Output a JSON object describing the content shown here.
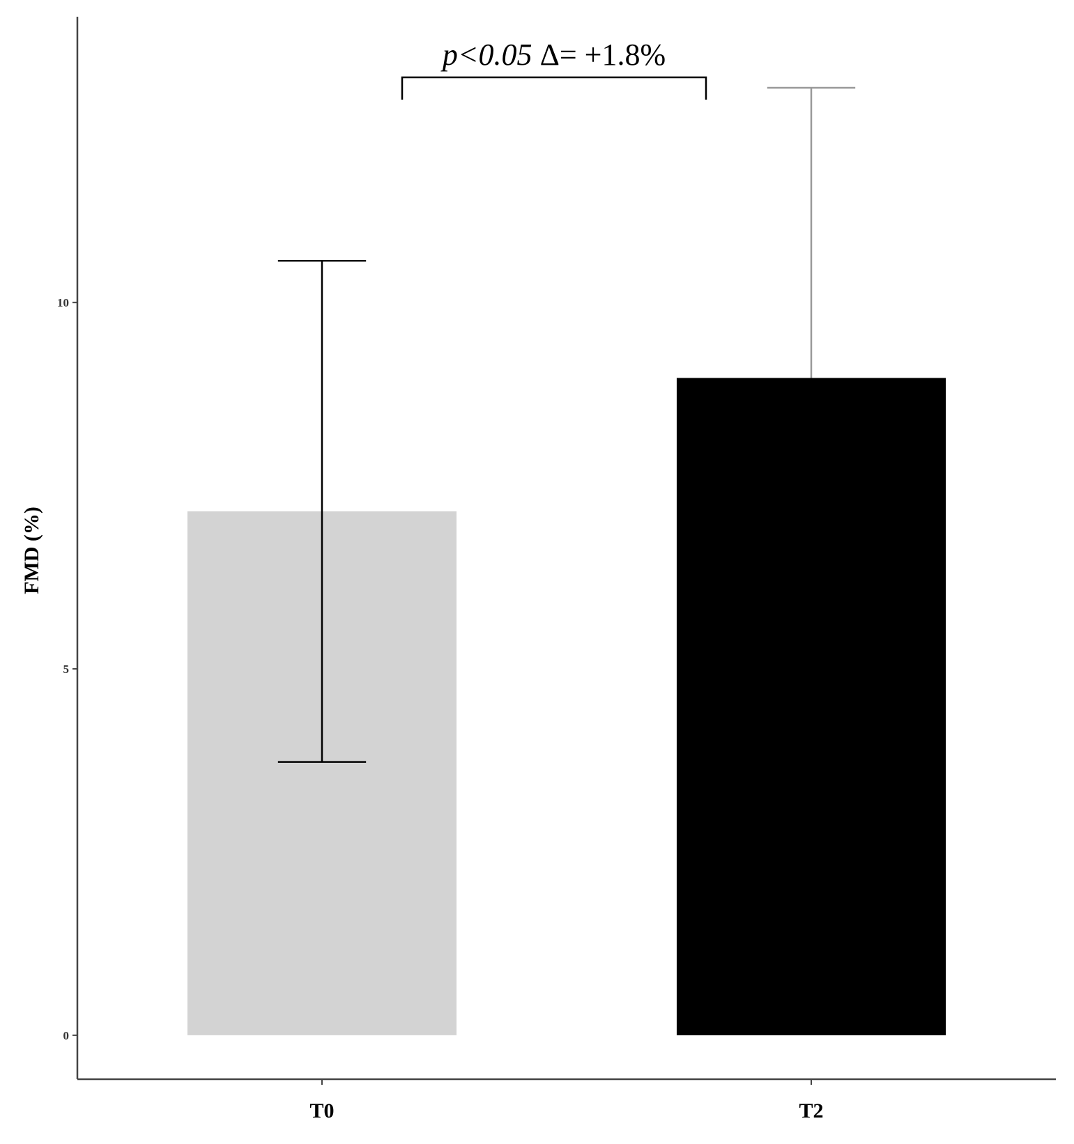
{
  "chart_data": {
    "type": "bar",
    "categories": [
      "T0",
      "T2"
    ],
    "values": [
      7.15,
      8.97
    ],
    "error_upper": [
      10.57,
      12.93
    ],
    "error_lower": [
      3.73,
      null
    ],
    "bar_colors": [
      "#d3d3d3",
      "#000000"
    ],
    "errorbar_colors": [
      "#000000",
      "#999999"
    ],
    "xlabel": "",
    "ylabel": "FMD (%)",
    "ylim": [
      -0.6,
      13.9
    ],
    "yticks": [
      0,
      5,
      10
    ],
    "ytick_labels": [
      "0",
      "5",
      "10"
    ],
    "grid": false,
    "legend": "none",
    "annotation": {
      "text_italic": "p<0.05",
      "text_rest": " Δ= +1.8%",
      "between": [
        "T0",
        "T2"
      ]
    }
  }
}
